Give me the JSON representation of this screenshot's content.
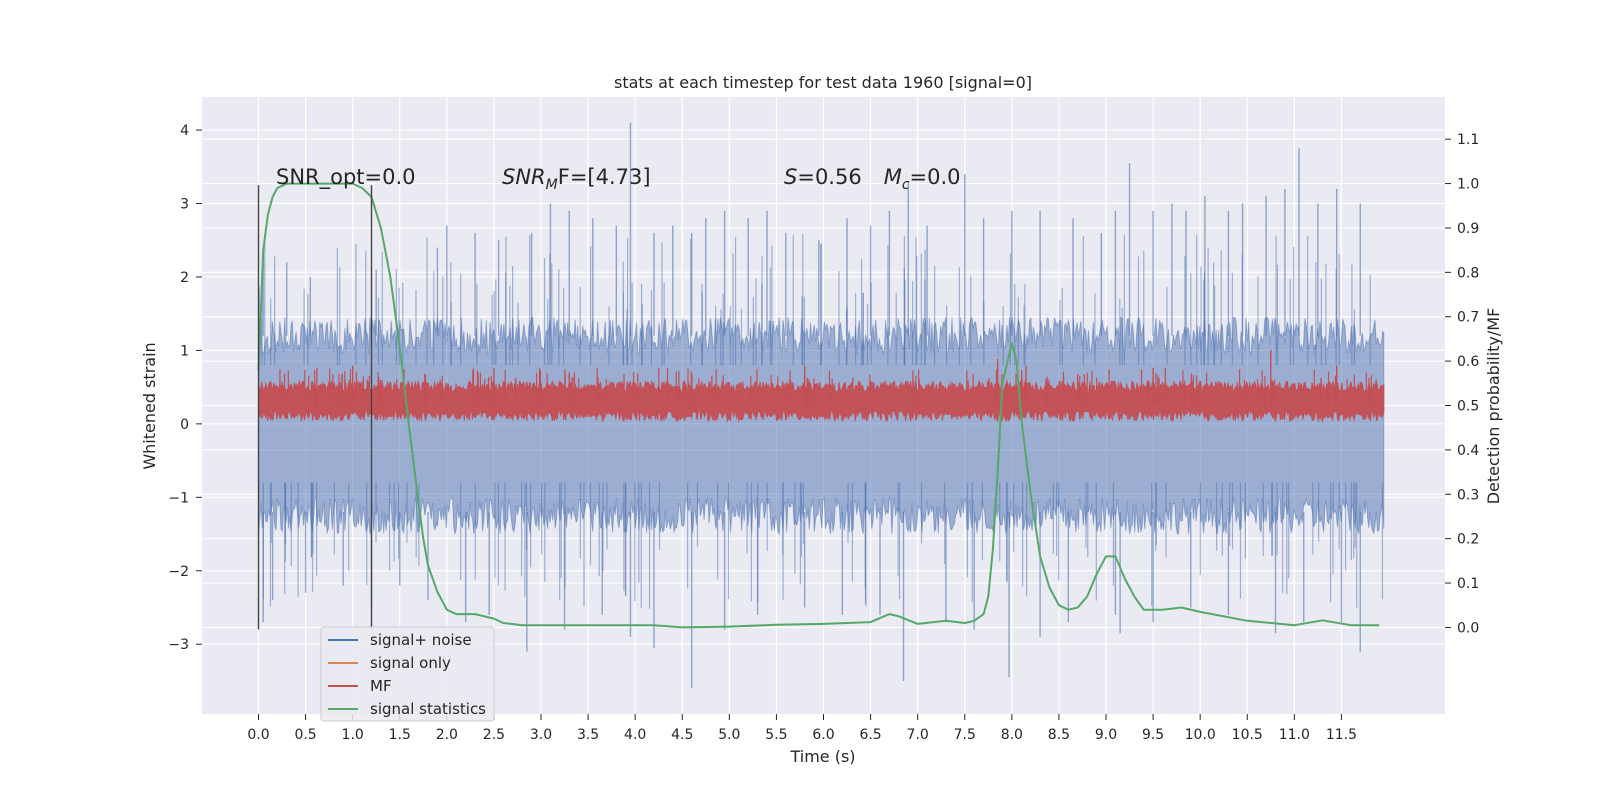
{
  "chart_data": {
    "type": "line",
    "title": "stats at each timestep for test data 1960 [signal=0]",
    "xlabel": "Time (s)",
    "ylabel": "Whitened strain",
    "y2label": "Detection probability/MF",
    "xlim": [
      -0.6,
      12.6
    ],
    "ylim": [
      -3.95,
      4.45
    ],
    "y2lim": [
      -0.195,
      1.195
    ],
    "grid": true,
    "legend_position": "lower-left",
    "xticks": [
      0.0,
      0.5,
      1.0,
      1.5,
      2.0,
      2.5,
      3.0,
      3.5,
      4.0,
      4.5,
      5.0,
      5.5,
      6.0,
      6.5,
      7.0,
      7.5,
      8.0,
      8.5,
      9.0,
      9.5,
      10.0,
      10.5,
      11.0,
      11.5
    ],
    "xtick_labels": [
      "0.0",
      "0.5",
      "1.0",
      "1.5",
      "2.0",
      "2.5",
      "3.0",
      "3.5",
      "4.0",
      "4.5",
      "5.0",
      "5.5",
      "6.0",
      "6.5",
      "7.0",
      "7.5",
      "8.0",
      "8.5",
      "9.0",
      "9.5",
      "10.0",
      "10.5",
      "11.0",
      "11.5"
    ],
    "yticks": [
      4,
      3,
      2,
      1,
      0,
      -1,
      -2,
      -3
    ],
    "ytick_labels": [
      "4",
      "3",
      "2",
      "1",
      "0",
      "−1",
      "−2",
      "−3"
    ],
    "y2ticks": [
      1.1,
      1.0,
      0.9,
      0.8,
      0.7,
      0.6,
      0.5,
      0.4,
      0.3,
      0.2,
      0.1,
      0.0
    ],
    "y2tick_labels": [
      "1.1",
      "1.0",
      "0.9",
      "0.8",
      "0.7",
      "0.6",
      "0.5",
      "0.4",
      "0.3",
      "0.2",
      "0.1",
      "0.0"
    ],
    "annotations": {
      "snr_opt": "SNR_opt=0.0",
      "snr_mf_prefix": "SNR",
      "snr_mf_sub": "M",
      "snr_mf_suffix": "F=[4.73]",
      "s_value": "=0.56",
      "s_symbol": "S",
      "mc_symbol": "M",
      "mc_sub": "c",
      "mc_value": "=0.0"
    },
    "vlines": [
      0.0,
      1.2
    ],
    "series": [
      {
        "name": "signal+ noise",
        "color": "#4c72b0",
        "axis": "left",
        "band": {
          "x_start": 0.0,
          "x_end": 11.95,
          "low_typical": -1.5,
          "high_typical": 1.45
        },
        "peaks": [
          [
            0.05,
            2.3
          ],
          [
            0.3,
            2.2
          ],
          [
            0.55,
            2.0
          ],
          [
            1.25,
            2.1
          ],
          [
            1.9,
            2.4
          ],
          [
            2.0,
            2.7
          ],
          [
            2.3,
            2.6
          ],
          [
            2.55,
            2.5
          ],
          [
            2.9,
            2.6
          ],
          [
            3.1,
            3.0
          ],
          [
            3.3,
            2.9
          ],
          [
            3.55,
            2.8
          ],
          [
            3.8,
            2.7
          ],
          [
            3.95,
            4.1
          ],
          [
            4.2,
            2.6
          ],
          [
            4.4,
            2.7
          ],
          [
            4.6,
            2.6
          ],
          [
            4.75,
            2.8
          ],
          [
            4.95,
            2.9
          ],
          [
            5.2,
            2.8
          ],
          [
            5.4,
            2.9
          ],
          [
            5.6,
            2.6
          ],
          [
            5.95,
            2.5
          ],
          [
            6.25,
            2.8
          ],
          [
            6.5,
            2.7
          ],
          [
            6.7,
            2.9
          ],
          [
            6.9,
            3.3
          ],
          [
            7.1,
            2.7
          ],
          [
            7.5,
            3.4
          ],
          [
            7.7,
            2.8
          ],
          [
            8.0,
            2.9
          ],
          [
            8.3,
            2.9
          ],
          [
            8.65,
            2.8
          ],
          [
            8.95,
            2.6
          ],
          [
            9.1,
            2.9
          ],
          [
            9.25,
            3.55
          ],
          [
            9.5,
            2.9
          ],
          [
            9.7,
            3.0
          ],
          [
            9.85,
            2.9
          ],
          [
            10.05,
            3.1
          ],
          [
            10.3,
            2.9
          ],
          [
            10.45,
            3.0
          ],
          [
            10.7,
            3.1
          ],
          [
            10.9,
            3.2
          ],
          [
            11.05,
            3.75
          ],
          [
            11.25,
            3.0
          ],
          [
            11.45,
            3.2
          ],
          [
            11.7,
            3.0
          ]
        ],
        "troughs": [
          [
            0.05,
            -2.7
          ],
          [
            0.15,
            -2.4
          ],
          [
            0.5,
            -2.3
          ],
          [
            0.9,
            -2.2
          ],
          [
            1.2,
            -2.5
          ],
          [
            1.5,
            -2.2
          ],
          [
            1.8,
            -2.4
          ],
          [
            2.2,
            -2.7
          ],
          [
            2.45,
            -2.6
          ],
          [
            2.85,
            -3.1
          ],
          [
            3.25,
            -2.8
          ],
          [
            3.65,
            -2.6
          ],
          [
            3.95,
            -2.9
          ],
          [
            4.2,
            -3.05
          ],
          [
            4.6,
            -3.6
          ],
          [
            4.95,
            -2.8
          ],
          [
            5.3,
            -2.6
          ],
          [
            5.8,
            -2.5
          ],
          [
            6.2,
            -2.6
          ],
          [
            6.6,
            -2.6
          ],
          [
            6.85,
            -3.5
          ],
          [
            7.3,
            -2.7
          ],
          [
            7.6,
            -2.8
          ],
          [
            7.97,
            -3.45
          ],
          [
            8.3,
            -2.9
          ],
          [
            8.6,
            -2.7
          ],
          [
            9.1,
            -2.6
          ],
          [
            9.15,
            -2.85
          ],
          [
            9.5,
            -2.7
          ],
          [
            9.9,
            -2.5
          ],
          [
            10.3,
            -2.6
          ],
          [
            10.8,
            -2.85
          ],
          [
            11.1,
            -2.7
          ],
          [
            11.5,
            -2.7
          ],
          [
            11.7,
            -3.1
          ]
        ]
      },
      {
        "name": "signal only",
        "color": "#dd8452",
        "axis": "left",
        "values": []
      },
      {
        "name": "MF",
        "color": "#c44e52",
        "axis": "right",
        "band": {
          "x_start": 0.0,
          "x_end": 11.95,
          "low_typical": 0.465,
          "high_typical": 0.555
        },
        "peaks": [
          [
            1.0,
            0.59
          ],
          [
            2.5,
            0.585
          ],
          [
            3.3,
            0.575
          ],
          [
            5.8,
            0.59
          ],
          [
            7.85,
            0.605
          ],
          [
            8.15,
            0.59
          ],
          [
            9.5,
            0.585
          ],
          [
            10.75,
            0.625
          ],
          [
            11.45,
            0.59
          ]
        ]
      },
      {
        "name": "signal statistics",
        "color": "#55a868",
        "axis": "right",
        "x": [
          0.0,
          0.05,
          0.1,
          0.15,
          0.2,
          0.3,
          0.5,
          0.8,
          1.0,
          1.1,
          1.2,
          1.3,
          1.4,
          1.5,
          1.6,
          1.7,
          1.75,
          1.8,
          1.9,
          2.0,
          2.1,
          2.3,
          2.5,
          2.6,
          2.8,
          3.0,
          3.5,
          4.0,
          4.2,
          4.5,
          5.0,
          5.5,
          6.0,
          6.5,
          6.7,
          6.8,
          7.0,
          7.3,
          7.5,
          7.6,
          7.7,
          7.75,
          7.8,
          7.85,
          7.9,
          8.0,
          8.05,
          8.1,
          8.2,
          8.3,
          8.4,
          8.5,
          8.6,
          8.7,
          8.8,
          8.9,
          9.0,
          9.1,
          9.2,
          9.3,
          9.4,
          9.6,
          9.8,
          10.0,
          10.5,
          11.0,
          11.3,
          11.6,
          11.9
        ],
        "values": [
          0.58,
          0.85,
          0.93,
          0.97,
          0.99,
          1.0,
          1.0,
          1.0,
          1.0,
          0.99,
          0.97,
          0.9,
          0.79,
          0.63,
          0.45,
          0.28,
          0.2,
          0.14,
          0.08,
          0.04,
          0.03,
          0.03,
          0.02,
          0.01,
          0.005,
          0.005,
          0.005,
          0.005,
          0.005,
          0.0,
          0.002,
          0.006,
          0.008,
          0.012,
          0.03,
          0.025,
          0.008,
          0.015,
          0.01,
          0.015,
          0.03,
          0.07,
          0.18,
          0.35,
          0.55,
          0.64,
          0.6,
          0.47,
          0.3,
          0.16,
          0.09,
          0.05,
          0.04,
          0.045,
          0.07,
          0.12,
          0.16,
          0.16,
          0.11,
          0.07,
          0.04,
          0.04,
          0.045,
          0.035,
          0.015,
          0.005,
          0.016,
          0.005,
          0.005
        ]
      }
    ]
  }
}
